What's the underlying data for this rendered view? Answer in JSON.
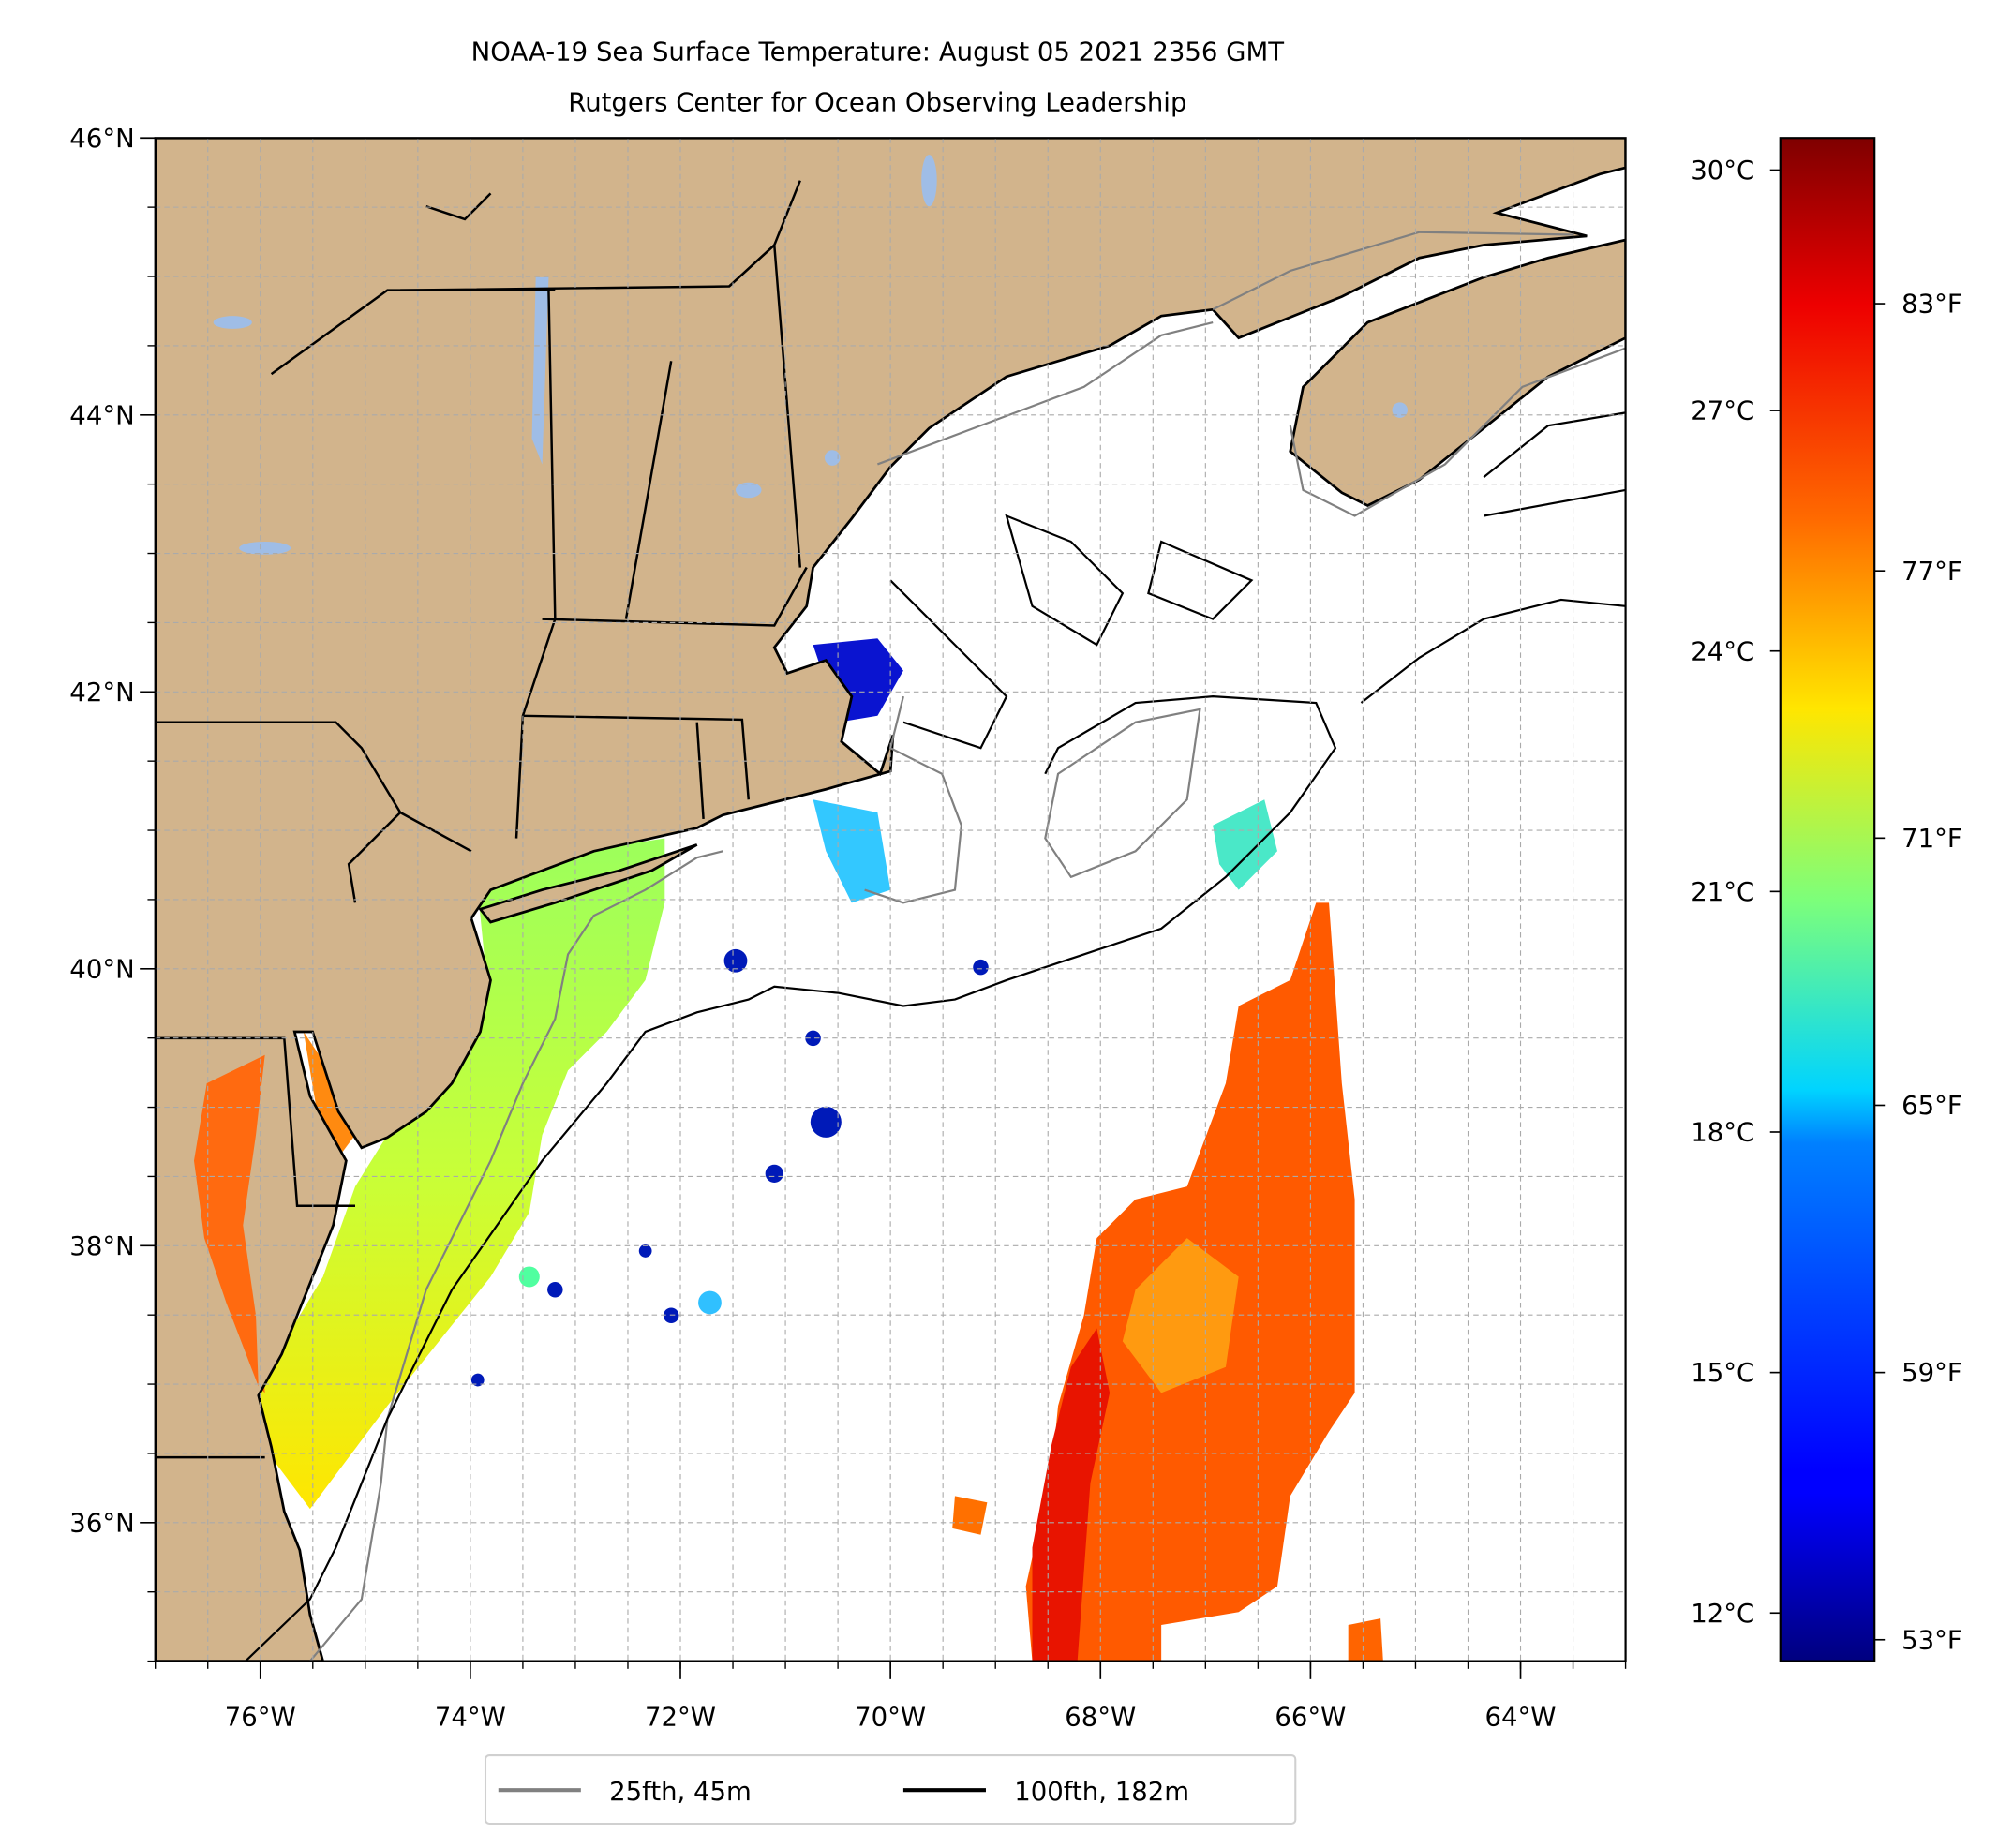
{
  "chart_data": {
    "type": "heatmap",
    "title": "NOAA-19 Sea Surface Temperature: August 05 2021 2356 GMT",
    "subtitle": "Rutgers Center for Ocean Observing Leadership",
    "xlim": [
      -77,
      -63
    ],
    "ylim": [
      35,
      46
    ],
    "grid": true,
    "x_ticks": [
      -76,
      -74,
      -72,
      -70,
      -68,
      -66,
      -64
    ],
    "x_tick_labels": [
      "76°W",
      "74°W",
      "72°W",
      "70°W",
      "68°W",
      "66°W",
      "64°W"
    ],
    "y_ticks": [
      36,
      38,
      40,
      42,
      44,
      46
    ],
    "y_tick_labels": [
      "36°N",
      "38°N",
      "40°N",
      "42°N",
      "44°N",
      "46°N"
    ],
    "colorbar": {
      "colormap": "jet",
      "range_c": [
        11.4,
        30.4
      ],
      "c_ticks": [
        12,
        15,
        18,
        21,
        24,
        27,
        30
      ],
      "c_tick_labels": [
        "12°C",
        "15°C",
        "18°C",
        "21°C",
        "24°C",
        "27°C",
        "30°C"
      ],
      "f_ticks": [
        53,
        59,
        65,
        71,
        77,
        83
      ],
      "f_tick_labels": [
        "53°F",
        "59°F",
        "65°F",
        "71°F",
        "77°F",
        "83°F"
      ]
    },
    "legend": {
      "placement": "bottom-center",
      "entries": [
        {
          "label": "25fth, 45m",
          "color": "#808080"
        },
        {
          "label": "100fth, 182m",
          "color": "#000000"
        }
      ]
    },
    "colors": {
      "land": "#d2b48c",
      "lakes": "#9fbde6",
      "grid": "#aaaaaa"
    }
  }
}
